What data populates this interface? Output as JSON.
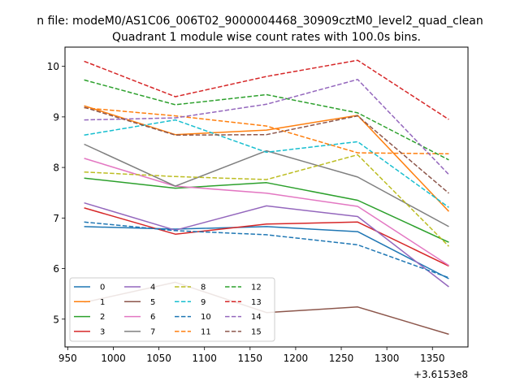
{
  "chart_data": {
    "type": "line",
    "suptitle": "n file: modeM0/AS1C06_006T02_9000004468_30909cztM0_level2_quad_clean",
    "title": "Quadrant 1 module wise count rates with 100.0s bins.",
    "xlabel": "",
    "ylabel": "",
    "x_offset_label": "+3.6153e8",
    "x": [
      968,
      1068,
      1168,
      1268,
      1368
    ],
    "xlim": [
      947,
      1389
    ],
    "ylim": [
      4.45,
      10.38
    ],
    "xticks": [
      950,
      1000,
      1050,
      1100,
      1150,
      1200,
      1250,
      1300,
      1350
    ],
    "yticks": [
      5,
      6,
      7,
      8,
      9,
      10
    ],
    "legend": {
      "position": "lower-left",
      "ncol": 4
    },
    "series": [
      {
        "name": "0",
        "color": "#1f77b4",
        "dash": "solid",
        "values": [
          6.83,
          6.78,
          6.83,
          6.73,
          5.8
        ]
      },
      {
        "name": "1",
        "color": "#ff7f0e",
        "dash": "solid",
        "values": [
          9.22,
          8.65,
          8.74,
          9.03,
          7.13
        ]
      },
      {
        "name": "2",
        "color": "#2ca02c",
        "dash": "solid",
        "values": [
          7.79,
          7.59,
          7.7,
          7.35,
          6.52
        ]
      },
      {
        "name": "3",
        "color": "#d62728",
        "dash": "solid",
        "values": [
          7.2,
          6.68,
          6.88,
          6.92,
          6.05
        ]
      },
      {
        "name": "4",
        "color": "#9467bd",
        "dash": "solid",
        "values": [
          7.3,
          6.76,
          7.24,
          7.03,
          5.64
        ]
      },
      {
        "name": "5",
        "color": "#8c564b",
        "dash": "solid",
        "values": [
          5.33,
          5.73,
          5.13,
          5.24,
          4.7
        ]
      },
      {
        "name": "6",
        "color": "#e377c2",
        "dash": "solid",
        "values": [
          8.18,
          7.63,
          7.49,
          7.23,
          6.06
        ]
      },
      {
        "name": "7",
        "color": "#7f7f7f",
        "dash": "solid",
        "values": [
          8.46,
          7.63,
          8.33,
          7.81,
          6.83
        ]
      },
      {
        "name": "8",
        "color": "#bcbd22",
        "dash": "dashed",
        "values": [
          7.91,
          7.82,
          7.76,
          8.25,
          6.44
        ]
      },
      {
        "name": "9",
        "color": "#17becf",
        "dash": "dashed",
        "values": [
          8.64,
          8.94,
          8.3,
          8.51,
          7.21
        ]
      },
      {
        "name": "10",
        "color": "#1f77b4",
        "dash": "dashed",
        "values": [
          6.92,
          6.75,
          6.67,
          6.47,
          5.82
        ]
      },
      {
        "name": "11",
        "color": "#ff7f0e",
        "dash": "dashed",
        "values": [
          9.18,
          9.02,
          8.82,
          8.29,
          8.27
        ]
      },
      {
        "name": "12",
        "color": "#2ca02c",
        "dash": "dashed",
        "values": [
          9.73,
          9.24,
          9.44,
          9.08,
          8.15
        ]
      },
      {
        "name": "13",
        "color": "#d62728",
        "dash": "dashed",
        "values": [
          10.1,
          9.4,
          9.8,
          10.12,
          8.95
        ]
      },
      {
        "name": "14",
        "color": "#9467bd",
        "dash": "dashed",
        "values": [
          8.94,
          8.98,
          9.25,
          9.74,
          7.86
        ]
      },
      {
        "name": "15",
        "color": "#8c564b",
        "dash": "dashed",
        "values": [
          9.19,
          8.64,
          8.65,
          9.02,
          7.49
        ]
      }
    ]
  }
}
